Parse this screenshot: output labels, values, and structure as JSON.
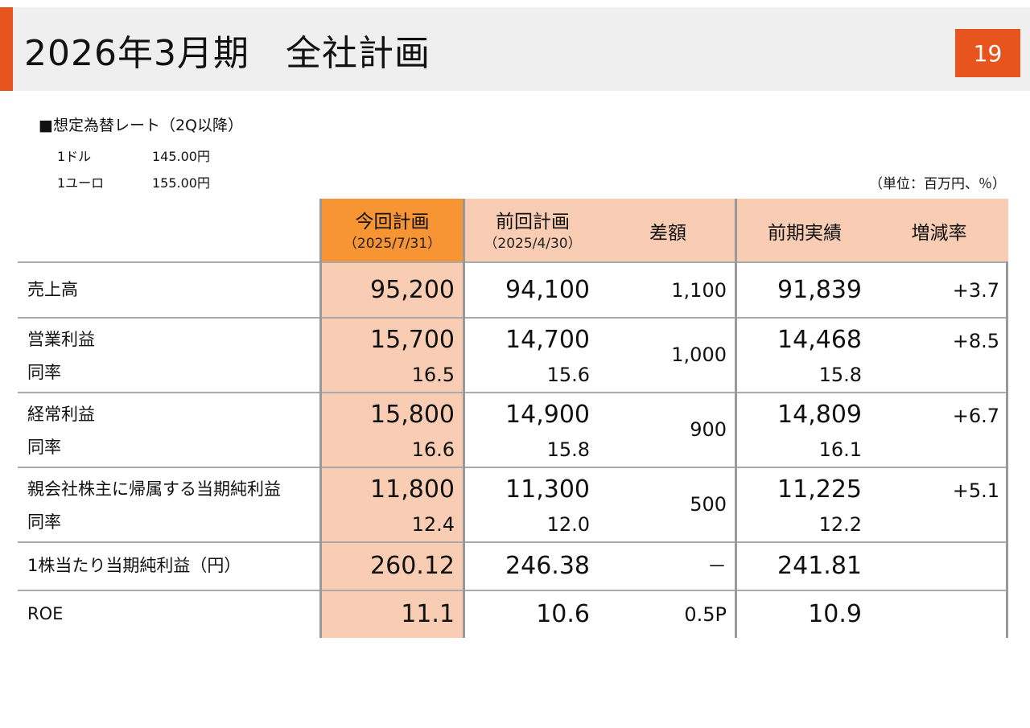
{
  "header": {
    "title": "2026年3月期　全社計画",
    "page_number": "19",
    "accent_color": "#e8541e"
  },
  "assumptions": {
    "heading": "■想定為替レート（2Q以降）",
    "rates": [
      {
        "currency": "1ドル",
        "rate": "145.00円"
      },
      {
        "currency": "1ユーロ",
        "rate": "155.00円"
      }
    ]
  },
  "unit_note": "（単位：百万円、％）",
  "table": {
    "columns": [
      {
        "label": "今回計画",
        "sub": "（2025/7/31）"
      },
      {
        "label": "前回計画",
        "sub": "（2025/4/30）"
      },
      {
        "label": "差額",
        "sub": ""
      },
      {
        "label": "前期実績",
        "sub": ""
      },
      {
        "label": "増減率",
        "sub": ""
      }
    ],
    "rows": [
      {
        "label": "売上高",
        "sublabel": "",
        "current": "95,200",
        "current_ratio": "",
        "previous": "94,100",
        "previous_ratio": "",
        "diff": "1,100",
        "actual": "91,839",
        "actual_ratio": "",
        "change": "+3.7"
      },
      {
        "label": "営業利益",
        "sublabel": "同率",
        "current": "15,700",
        "current_ratio": "16.5",
        "previous": "14,700",
        "previous_ratio": "15.6",
        "diff": "1,000",
        "actual": "14,468",
        "actual_ratio": "15.8",
        "change": "+8.5"
      },
      {
        "label": "経常利益",
        "sublabel": "同率",
        "current": "15,800",
        "current_ratio": "16.6",
        "previous": "14,900",
        "previous_ratio": "15.8",
        "diff": "900",
        "actual": "14,809",
        "actual_ratio": "16.1",
        "change": "+6.7"
      },
      {
        "label": "親会社株主に帰属する当期純利益",
        "sublabel": "同率",
        "current": "11,800",
        "current_ratio": "12.4",
        "previous": "11,300",
        "previous_ratio": "12.0",
        "diff": "500",
        "actual": "11,225",
        "actual_ratio": "12.2",
        "change": "+5.1"
      },
      {
        "label": "1株当たり当期純利益（円）",
        "sublabel": "",
        "current": "260.12",
        "current_ratio": "",
        "previous": "246.38",
        "previous_ratio": "",
        "diff": "－",
        "actual": "241.81",
        "actual_ratio": "",
        "change": ""
      },
      {
        "label": "ROE",
        "sublabel": "",
        "current": "11.1",
        "current_ratio": "",
        "previous": "10.6",
        "previous_ratio": "",
        "diff": "0.5P",
        "actual": "10.9",
        "actual_ratio": "",
        "change": ""
      }
    ]
  }
}
